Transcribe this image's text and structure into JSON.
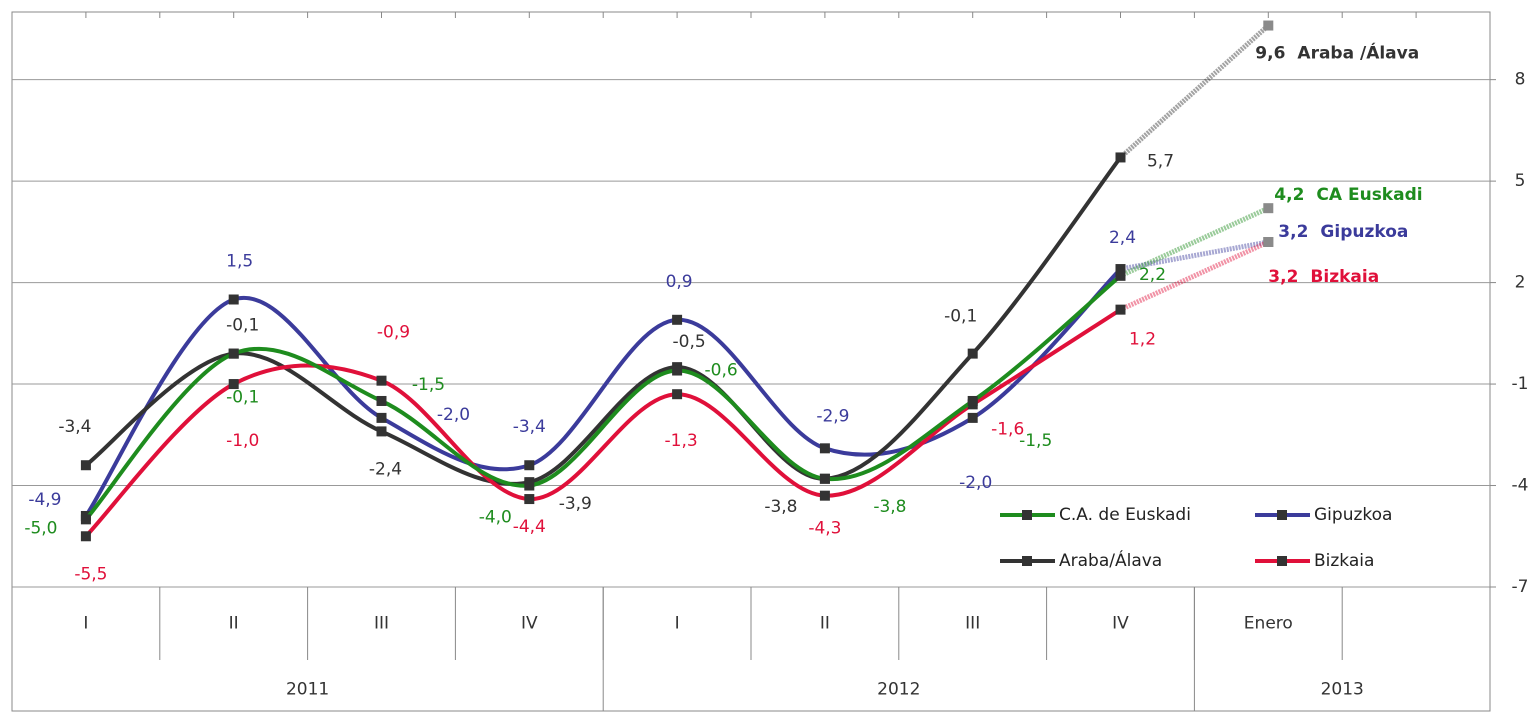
{
  "chart_data": {
    "type": "line",
    "categories": [
      "I",
      "II",
      "III",
      "IV",
      "I",
      "II",
      "III",
      "IV",
      "Enero",
      null
    ],
    "groups": [
      {
        "label": "2011",
        "count": 4
      },
      {
        "label": "2012",
        "count": 4
      },
      {
        "label": "2013",
        "count": 2
      }
    ],
    "ylim": [
      -7,
      10
    ],
    "yticks": [
      -7,
      -4,
      -1,
      2,
      5,
      8
    ],
    "grid": true,
    "legend": "lower right",
    "series": [
      {
        "name": "Gipuzkoa",
        "color": "#3b3b9b",
        "end_label": "Gipuzkoa",
        "values": [
          -4.9,
          1.5,
          -2.0,
          -3.4,
          0.9,
          -2.9,
          -2.0,
          2.4,
          3.2,
          null
        ],
        "value_labels": [
          "-4,9",
          "1,5",
          "-2,0",
          "-3,4",
          "0,9",
          "-2,9",
          "-2,0",
          "2,4",
          "3,2",
          null
        ]
      },
      {
        "name": "Araba/Álava",
        "color": "#333333",
        "end_label": "Araba /Álava",
        "values": [
          -3.4,
          -0.1,
          -2.4,
          -3.9,
          -0.5,
          -3.8,
          -0.1,
          5.7,
          9.6,
          null
        ],
        "value_labels": [
          "-3,4",
          "-0,1",
          "-2,4",
          "-3,9",
          "-0,5",
          "-3,8",
          "-0,1",
          "5,7",
          "9,6",
          null
        ]
      },
      {
        "name": "Bizkaia",
        "color": "#e0103a",
        "end_label": "Bizkaia",
        "values": [
          -5.5,
          -1.0,
          -0.9,
          -4.4,
          -1.3,
          -4.3,
          -1.6,
          1.2,
          3.2,
          null
        ],
        "value_labels": [
          "-5,5",
          "-1,0",
          "-0,9",
          "-4,4",
          "-1,3",
          "-4,3",
          "-1,6",
          "1,2",
          "3,2",
          null
        ]
      },
      {
        "name": "C.A. de Euskadi",
        "color": "#1e8c1e",
        "end_label": "CA Euskadi",
        "values": [
          -5.0,
          -0.1,
          -1.5,
          -4.0,
          -0.6,
          -3.8,
          -1.5,
          2.2,
          4.2,
          null
        ],
        "value_labels": [
          "-5,0",
          "-0,1",
          "-1,5",
          "-4,0",
          "-0,6",
          "-3,8",
          "-1,5",
          "2,2",
          "4,2",
          null
        ]
      }
    ]
  }
}
